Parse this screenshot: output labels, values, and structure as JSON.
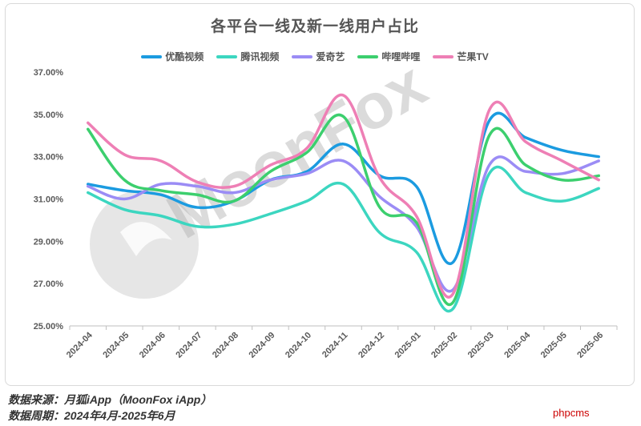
{
  "chart_data": {
    "type": "line",
    "title": "各平台一线及新一线用户占比",
    "categories": [
      "2024-04",
      "2024-05",
      "2024-06",
      "2024-07",
      "2024-08",
      "2024-09",
      "2024-10",
      "2024-11",
      "2024-12",
      "2025-01",
      "2025-02",
      "2025-03",
      "2025-04",
      "2025-05",
      "2025-06"
    ],
    "y_ticks": [
      "37.00%",
      "35.00%",
      "33.00%",
      "31.00%",
      "29.00%",
      "27.00%",
      "25.00%"
    ],
    "ylim": [
      25,
      37
    ],
    "legend_position": "top",
    "series": [
      {
        "name": "优酷视频",
        "color": "#1b9be0",
        "values": [
          31.7,
          31.4,
          31.2,
          30.6,
          30.9,
          31.9,
          32.3,
          33.6,
          32.1,
          31.6,
          28.0,
          34.7,
          33.9,
          33.3,
          33.0
        ]
      },
      {
        "name": "腾讯视频",
        "color": "#3cd6c0",
        "values": [
          31.3,
          30.5,
          30.2,
          29.7,
          29.8,
          30.3,
          30.9,
          31.7,
          29.4,
          28.5,
          25.8,
          32.2,
          31.3,
          30.9,
          31.5
        ]
      },
      {
        "name": "爱奇艺",
        "color": "#9b8cf5",
        "values": [
          31.6,
          31.0,
          31.7,
          31.6,
          31.3,
          31.9,
          32.2,
          32.8,
          31.1,
          29.7,
          26.7,
          32.6,
          32.3,
          32.2,
          32.8
        ]
      },
      {
        "name": "哔哩哔哩",
        "color": "#3ccf6e",
        "values": [
          34.3,
          31.9,
          31.4,
          31.2,
          30.9,
          32.3,
          33.2,
          34.9,
          30.6,
          29.9,
          26.1,
          34.0,
          32.6,
          31.9,
          32.1
        ]
      },
      {
        "name": "芒果TV",
        "color": "#ee7fb5",
        "values": [
          34.6,
          33.1,
          32.8,
          31.8,
          31.6,
          32.6,
          33.4,
          35.9,
          32.0,
          30.2,
          26.5,
          35.2,
          33.7,
          32.8,
          31.9
        ]
      }
    ]
  },
  "watermark": "MoonFox",
  "footer": {
    "source": "数据来源：月狐iApp（MoonFox iApp）",
    "period": "数据周期：2024年4月-2025年6月"
  },
  "site_mark": "phpcms"
}
